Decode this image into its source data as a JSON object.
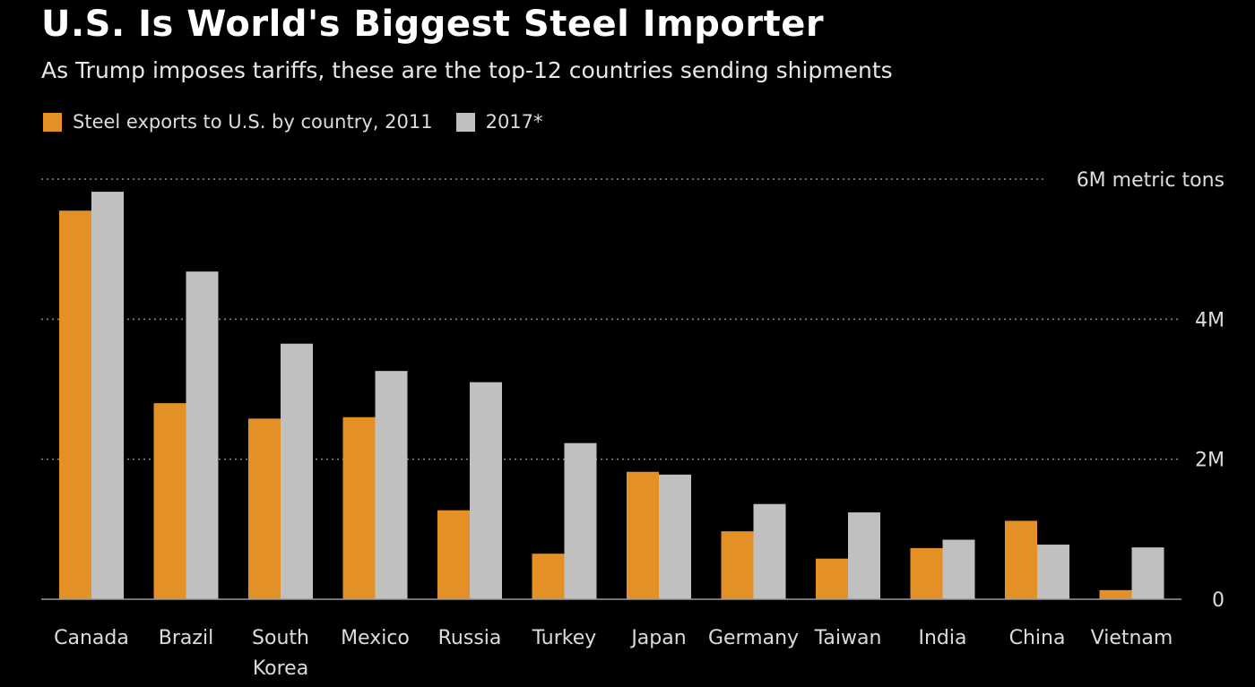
{
  "title": "U.S. Is World's Biggest Steel Importer",
  "subtitle": "As Trump imposes tariffs, these are the top-12 countries sending shipments",
  "colors": {
    "series_2011": "#e39127",
    "series_2017": "#c0c0c0",
    "grid": "#8a8a8a",
    "text": "#dcdcdc"
  },
  "chart_data": {
    "type": "bar",
    "title": "U.S. Is World's Biggest Steel Importer",
    "subtitle": "As Trump imposes tariffs, these are the top-12 countries sending shipments",
    "categories": [
      "Canada",
      "Brazil",
      "South\nKorea",
      "Mexico",
      "Russia",
      "Turkey",
      "Japan",
      "Germany",
      "Taiwan",
      "India",
      "China",
      "Vietnam"
    ],
    "series": [
      {
        "name": "Steel exports to U.S. by country, 2011",
        "values": [
          5.55,
          2.8,
          2.58,
          2.6,
          1.27,
          0.65,
          1.82,
          0.97,
          0.58,
          0.73,
          1.12,
          0.13
        ]
      },
      {
        "name": "2017*",
        "values": [
          5.82,
          4.68,
          3.65,
          3.26,
          3.1,
          2.23,
          1.78,
          1.36,
          1.24,
          0.85,
          0.78,
          0.74
        ]
      }
    ],
    "ylim": [
      0,
      6
    ],
    "yticks": [
      0,
      2,
      4,
      6
    ],
    "ytick_labels": [
      "0",
      "2M",
      "4M",
      "6M metric tons"
    ],
    "grid": true,
    "legend_position": "top-left"
  }
}
